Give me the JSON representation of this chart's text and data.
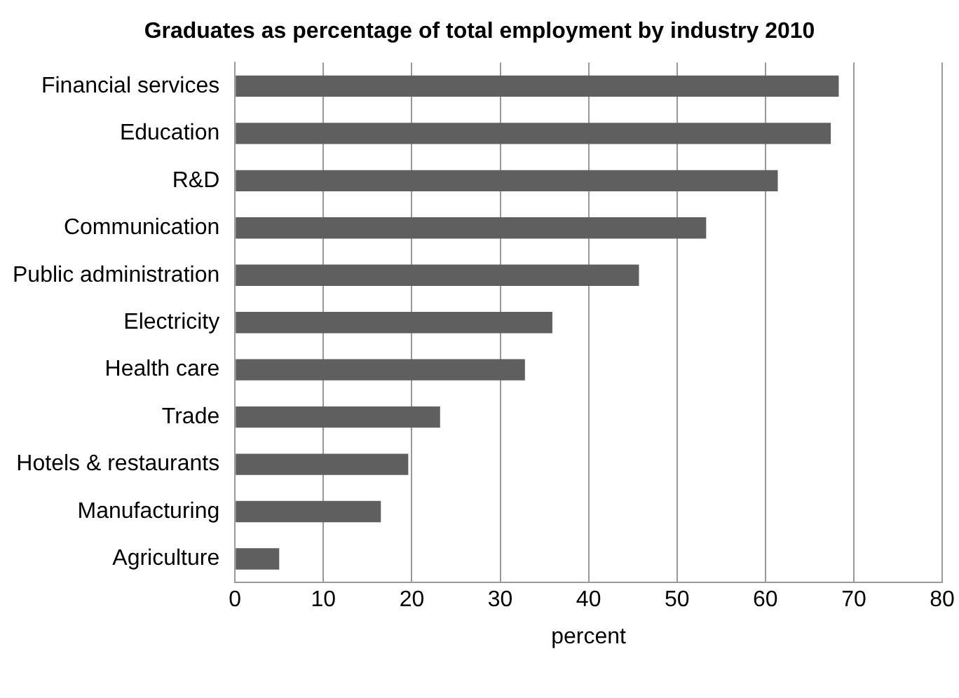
{
  "chart_data": {
    "type": "bar",
    "orientation": "horizontal",
    "title": "Graduates as percentage of total employment by industry 2010",
    "xlabel": "percent",
    "categories": [
      "Financial services",
      "Education",
      "R&D",
      "Communication",
      "Public administration",
      "Electricity",
      "Health care",
      "Trade",
      "Hotels & restaurants",
      "Manufacturing",
      "Agriculture"
    ],
    "values": [
      68.3,
      67.4,
      61.4,
      53.3,
      45.7,
      35.9,
      32.8,
      23.2,
      19.6,
      16.5,
      5.0
    ],
    "color": "#5f5f5f",
    "xlim": [
      0,
      80
    ],
    "xticks": [
      0,
      10,
      20,
      30,
      40,
      50,
      60,
      70,
      80
    ],
    "grid": "x",
    "legend": false
  }
}
